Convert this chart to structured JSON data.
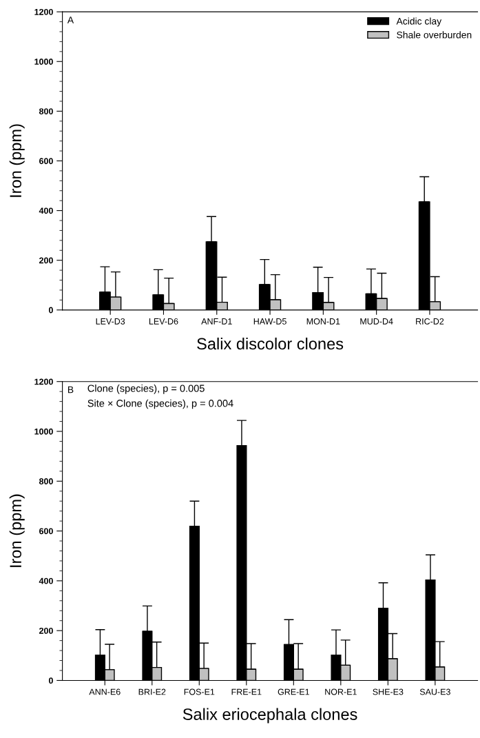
{
  "chart_data": [
    {
      "type": "bar",
      "xlabel": "Salix discolor clones",
      "ylabel": "Iron (ppm)",
      "categories": [
        "LEV-D3",
        "LEV-D6",
        "ANF-D1",
        "HAW-D5",
        "MON-D1",
        "MUD-D4",
        "RIC-D2"
      ],
      "ylim": [
        0,
        1200
      ],
      "yticks": [
        0,
        200,
        400,
        600,
        800,
        1000,
        1200
      ],
      "legend": "top right",
      "grid": false,
      "annotations": [
        "A"
      ],
      "series": [
        {
          "name": "Acidic clay",
          "color": "#000000",
          "values": [
            72,
            61,
            274,
            102,
            70,
            65,
            435
          ],
          "errors": [
            [
              72,
              174
            ],
            [
              61,
              162
            ],
            [
              274,
              376
            ],
            [
              102,
              203
            ],
            [
              70,
              172
            ],
            [
              65,
              165
            ],
            [
              435,
              536
            ]
          ]
        },
        {
          "name": "Shale overburden",
          "color": "#c0c0c0",
          "values": [
            52,
            26,
            31,
            41,
            30,
            46,
            33
          ],
          "errors": [
            [
              52,
              153
            ],
            [
              26,
              128
            ],
            [
              31,
              132
            ],
            [
              41,
              142
            ],
            [
              30,
              131
            ],
            [
              46,
              148
            ],
            [
              33,
              134
            ]
          ]
        }
      ]
    },
    {
      "type": "bar",
      "xlabel": "Salix eriocephala clones",
      "ylabel": "Iron (ppm)",
      "categories": [
        "ANN-E6",
        "BRI-E2",
        "FOS-E1",
        "FRE-E1",
        "GRE-E1",
        "NOR-E1",
        "SHE-E3",
        "SAU-E3"
      ],
      "ylim": [
        0,
        1200
      ],
      "yticks": [
        0,
        200,
        400,
        600,
        800,
        1000,
        1200
      ],
      "legend": false,
      "grid": false,
      "annotations": [
        "B",
        "Clone (species), p = 0.005",
        "Site × Clone (species), p = 0.004"
      ],
      "series": [
        {
          "color": "#000000",
          "values": [
            102,
            197,
            619,
            943,
            144,
            102,
            290,
            403
          ],
          "errors": [
            [
              102,
              204
            ],
            [
              197,
              299
            ],
            [
              619,
              720
            ],
            [
              943,
              1044
            ],
            [
              144,
              244
            ],
            [
              102,
              203
            ],
            [
              290,
              392
            ],
            [
              403,
              504
            ]
          ]
        },
        {
          "color": "#c0c0c0",
          "values": [
            43,
            52,
            48,
            45,
            45,
            61,
            87,
            54
          ],
          "errors": [
            [
              43,
              145
            ],
            [
              52,
              154
            ],
            [
              48,
              150
            ],
            [
              45,
              148
            ],
            [
              45,
              148
            ],
            [
              61,
              162
            ],
            [
              87,
              188
            ],
            [
              54,
              156
            ]
          ]
        }
      ]
    }
  ]
}
